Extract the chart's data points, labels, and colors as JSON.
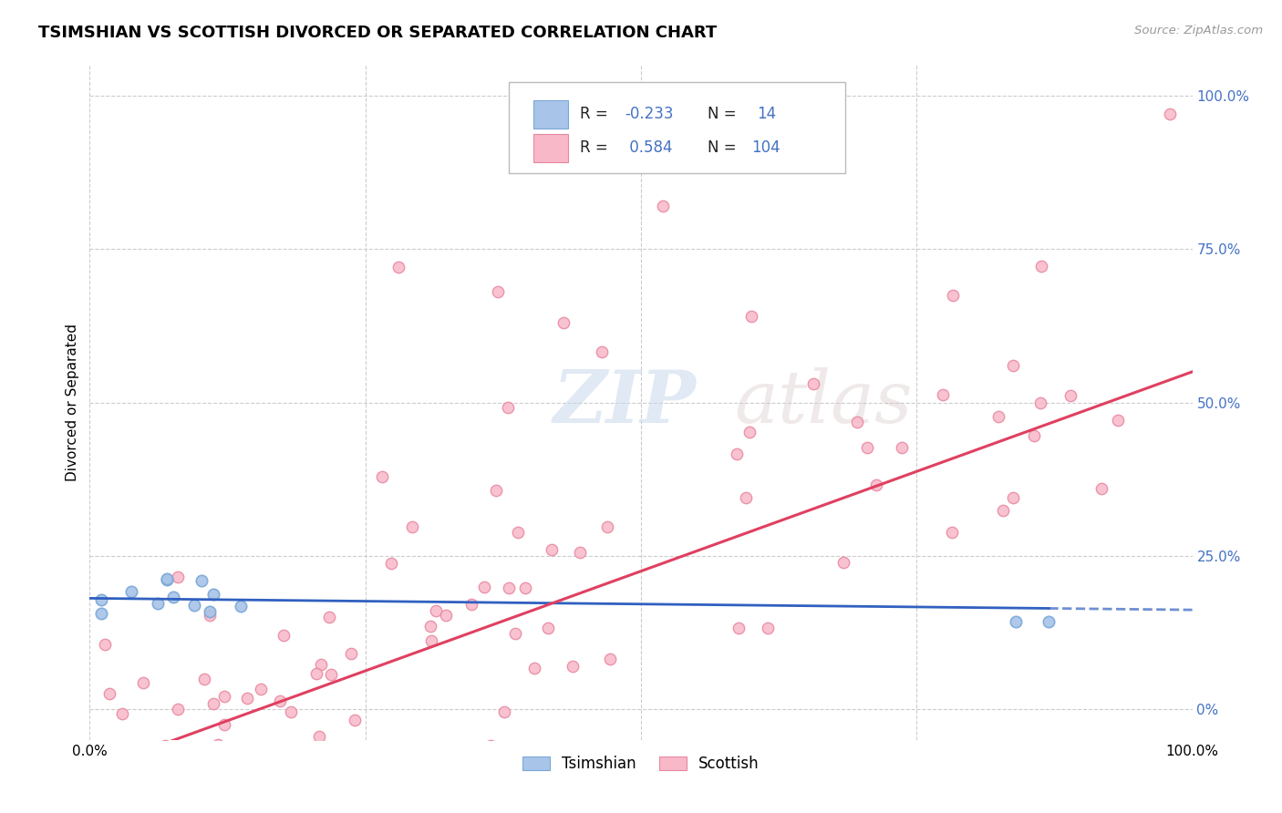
{
  "title": "TSIMSHIAN VS SCOTTISH DIVORCED OR SEPARATED CORRELATION CHART",
  "source": "Source: ZipAtlas.com",
  "ylabel": "Divorced or Separated",
  "xmin": 0.0,
  "xmax": 1.0,
  "ymin": -0.05,
  "ymax": 1.05,
  "blue_fill": "#a8c4e8",
  "blue_edge": "#7aa8d8",
  "pink_fill": "#f8b8c8",
  "pink_edge": "#e888a0",
  "blue_line_color": "#3060c0",
  "pink_line_color": "#e04060",
  "R_blue": -0.233,
  "N_blue": 14,
  "R_pink": 0.584,
  "N_pink": 104,
  "watermark": "ZIPatlas",
  "legend_label_blue": "Tsimshian",
  "legend_label_pink": "Scottish",
  "grid_color": "#cccccc",
  "right_axis_color": "#4472c4"
}
